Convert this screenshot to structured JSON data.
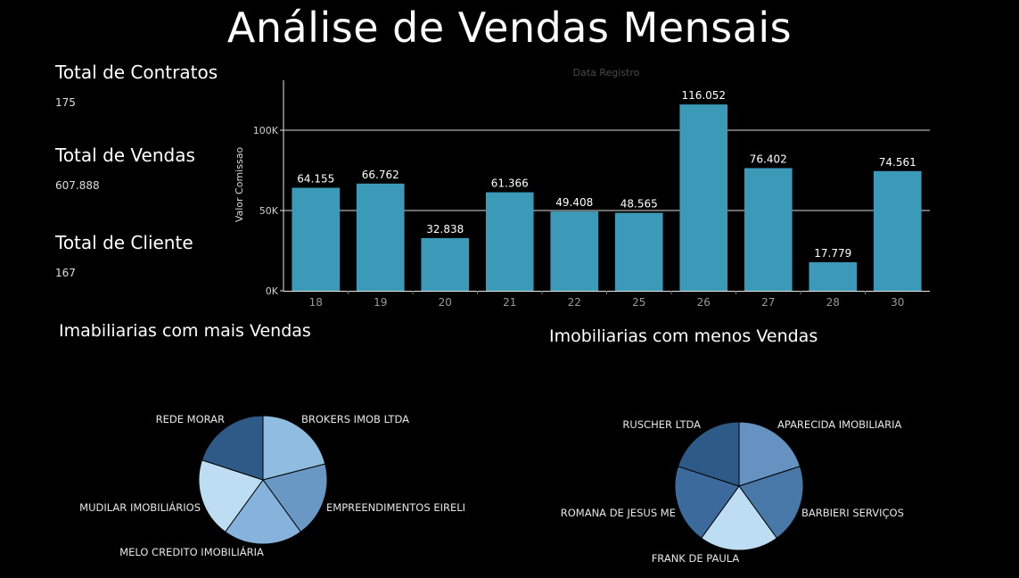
{
  "header": {
    "title": "Análise de Vendas Mensais"
  },
  "kpis": [
    {
      "label": "Total de Contratos",
      "value": "175"
    },
    {
      "label": "Total de Vendas",
      "value": "607.888"
    },
    {
      "label": "Total de Cliente",
      "value": "167"
    }
  ],
  "pies": {
    "top_title": "Imabiliarias com mais Vendas",
    "bottom_title": "Imobiliarias com menos Vendas"
  },
  "chart_data": [
    {
      "type": "bar",
      "xlabel": "Data Registro",
      "ylabel": "Valor Comissao",
      "categories": [
        "18",
        "19",
        "20",
        "21",
        "22",
        "25",
        "26",
        "27",
        "28",
        "30"
      ],
      "values": [
        64155,
        66762,
        32838,
        61366,
        49408,
        48565,
        116052,
        76402,
        17779,
        74561
      ],
      "data_labels": [
        "64.155",
        "66.762",
        "32.838",
        "61.366",
        "49.408",
        "48.565",
        "116.052",
        "76.402",
        "17.779",
        "74.561"
      ],
      "yticks": [
        0,
        50000,
        100000
      ],
      "ytick_labels": [
        "0K",
        "50K",
        "100K"
      ],
      "ylim": [
        0,
        130000
      ],
      "grid": true,
      "bar_color": "#3a9ab8"
    },
    {
      "type": "pie",
      "title": "Imabiliarias com mais Vendas",
      "labels": [
        "BROKERS IMOB LTDA",
        "EMPREENDIMENTOS EIRELI",
        "MELO CREDITO IMOBILIÁRIA",
        "MUDILAR IMOBILIÁRIOS",
        "REDE MORAR"
      ],
      "values": [
        21,
        19,
        20,
        20,
        20
      ],
      "colors": [
        "#8fbde0",
        "#6a98c4",
        "#86b3dc",
        "#bcddf2",
        "#2d5a87"
      ]
    },
    {
      "type": "pie",
      "title": "Imobiliarias com menos Vendas",
      "labels": [
        "APARECIDA IMOBILIARIA",
        "BARBIERI SERVIÇOS",
        "FRANK DE PAULA",
        "ROMANA DE JESUS ME",
        "RUSCHER LTDA"
      ],
      "values": [
        20,
        20,
        20,
        20,
        20
      ],
      "colors": [
        "#6592c0",
        "#4878a8",
        "#bcddf2",
        "#3c6a9c",
        "#2d5a87"
      ]
    }
  ]
}
